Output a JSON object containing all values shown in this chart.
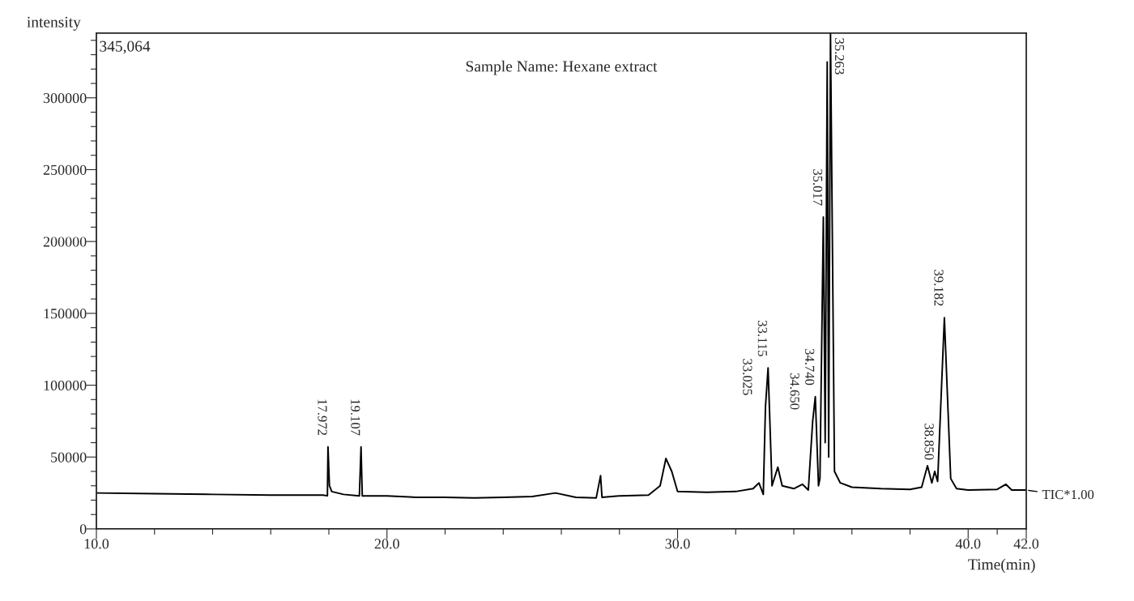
{
  "chart_data": {
    "type": "line",
    "title": "Sample Name: Hexane extract",
    "xlabel": "Time(min)",
    "ylabel": "intensity",
    "x": [
      10,
      12,
      14,
      16,
      17.8,
      17.95,
      17.97,
      18.02,
      18.1,
      18.5,
      19.05,
      19.107,
      19.15,
      20,
      21,
      22,
      23,
      24,
      25,
      25.8,
      26.5,
      27.2,
      27.35,
      27.4,
      28,
      29,
      29.4,
      29.6,
      29.8,
      30,
      31,
      32,
      32.6,
      32.8,
      32.95,
      33.025,
      33.115,
      33.25,
      33.45,
      33.6,
      34,
      34.3,
      34.5,
      34.65,
      34.74,
      34.85,
      34.9,
      35.017,
      35.08,
      35.15,
      35.2,
      35.263,
      35.4,
      35.6,
      36,
      37,
      38,
      38.4,
      38.6,
      38.75,
      38.85,
      38.95,
      39.182,
      39.4,
      39.6,
      40,
      41,
      41.3,
      41.5,
      42
    ],
    "series": [
      {
        "name": "TIC*1.00",
        "color": "#000000",
        "values": [
          25000,
          24500,
          24000,
          23500,
          23500,
          23000,
          57000,
          30000,
          26000,
          24000,
          23000,
          57000,
          23000,
          23000,
          22000,
          22000,
          21500,
          22000,
          22500,
          25000,
          22000,
          21500,
          37000,
          22000,
          23000,
          23500,
          30000,
          49000,
          40000,
          26000,
          25500,
          26000,
          28000,
          32000,
          24000,
          85000,
          112000,
          30000,
          43000,
          30000,
          28000,
          31000,
          27000,
          75000,
          92000,
          30000,
          35000,
          217000,
          60000,
          325000,
          50000,
          345000,
          40000,
          32000,
          29000,
          28000,
          27500,
          29000,
          44000,
          32000,
          40000,
          33000,
          147000,
          35000,
          28000,
          27000,
          27500,
          31000,
          27000,
          27000
        ]
      }
    ],
    "xlim": [
      10,
      42
    ],
    "xticks": [
      {
        "value": 10,
        "label": "10.0"
      },
      {
        "value": 12,
        "label": null
      },
      {
        "value": 14,
        "label": null
      },
      {
        "value": 16,
        "label": null
      },
      {
        "value": 18,
        "label": null
      },
      {
        "value": 20,
        "label": "20.0"
      },
      {
        "value": 22,
        "label": null
      },
      {
        "value": 24,
        "label": null
      },
      {
        "value": 26,
        "label": null
      },
      {
        "value": 28,
        "label": null
      },
      {
        "value": 30,
        "label": "30.0"
      },
      {
        "value": 32,
        "label": null
      },
      {
        "value": 34,
        "label": null
      },
      {
        "value": 36,
        "label": null
      },
      {
        "value": 38,
        "label": null
      },
      {
        "value": 40,
        "label": "40.0"
      },
      {
        "value": 41,
        "label": null
      },
      {
        "value": 42,
        "label": "42.0"
      }
    ],
    "ylim": [
      0,
      345064
    ],
    "yticks": [
      0,
      {
        "value": 10000,
        "label": null
      },
      {
        "value": 20000,
        "label": null
      },
      {
        "value": 30000,
        "label": null
      },
      {
        "value": 40000,
        "label": null
      },
      50000,
      {
        "value": 60000,
        "label": null
      },
      {
        "value": 70000,
        "label": null
      },
      {
        "value": 80000,
        "label": null
      },
      {
        "value": 90000,
        "label": null
      },
      100000,
      {
        "value": 110000,
        "label": null
      },
      {
        "value": 120000,
        "label": null
      },
      {
        "value": 130000,
        "label": null
      },
      {
        "value": 140000,
        "label": null
      },
      150000,
      {
        "value": 160000,
        "label": null
      },
      {
        "value": 170000,
        "label": null
      },
      {
        "value": 180000,
        "label": null
      },
      {
        "value": 190000,
        "label": null
      },
      200000,
      {
        "value": 210000,
        "label": null
      },
      {
        "value": 220000,
        "label": null
      },
      {
        "value": 230000,
        "label": null
      },
      {
        "value": 240000,
        "label": null
      },
      250000,
      {
        "value": 260000,
        "label": null
      },
      {
        "value": 270000,
        "label": null
      },
      {
        "value": 280000,
        "label": null
      },
      {
        "value": 290000,
        "label": null
      },
      300000,
      {
        "value": 310000,
        "label": null
      },
      {
        "value": 320000,
        "label": null
      },
      {
        "value": 330000,
        "label": null
      },
      {
        "value": 340000,
        "label": null
      }
    ],
    "grid": false,
    "legend": "right",
    "marker": "none",
    "line_style": "solid",
    "annotations": [
      "345,064",
      {
        "text": "17.972",
        "x": 17.97,
        "y": 57000
      },
      {
        "text": "19.107",
        "x": 19.107,
        "y": 57000
      },
      {
        "text": "33.025",
        "x": 33.025,
        "y": 85000
      },
      {
        "text": "33.115",
        "x": 33.115,
        "y": 112000
      },
      {
        "text": "34.650",
        "x": 34.65,
        "y": 75000
      },
      {
        "text": "34.740",
        "x": 34.74,
        "y": 92000
      },
      {
        "text": "35.017",
        "x": 35.017,
        "y": 217000
      },
      {
        "text": "35.263",
        "x": 35.263,
        "y": 345000
      },
      {
        "text": "38.850",
        "x": 38.85,
        "y": 40000
      },
      {
        "text": "39.182",
        "x": 39.182,
        "y": 147000
      }
    ]
  }
}
